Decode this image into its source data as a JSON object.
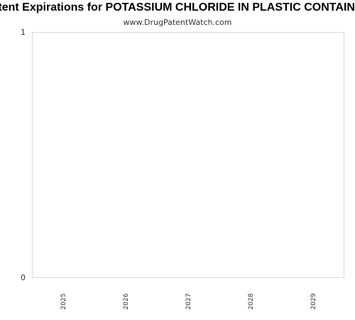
{
  "chart_data": {
    "type": "bar",
    "title": "Patent Expirations for POTASSIUM CHLORIDE IN PLASTIC CONTAINER",
    "subtitle": "www.DrugPatentWatch.com",
    "categories": [
      "2025",
      "2026",
      "2027",
      "2028",
      "2029"
    ],
    "values": [
      0,
      0,
      0,
      0,
      0
    ],
    "y_ticks": [
      "0",
      "1"
    ],
    "ylim": [
      0,
      1
    ],
    "xlabel": "",
    "ylabel": "",
    "grid": false,
    "frame_color": "#d9d9d9"
  }
}
